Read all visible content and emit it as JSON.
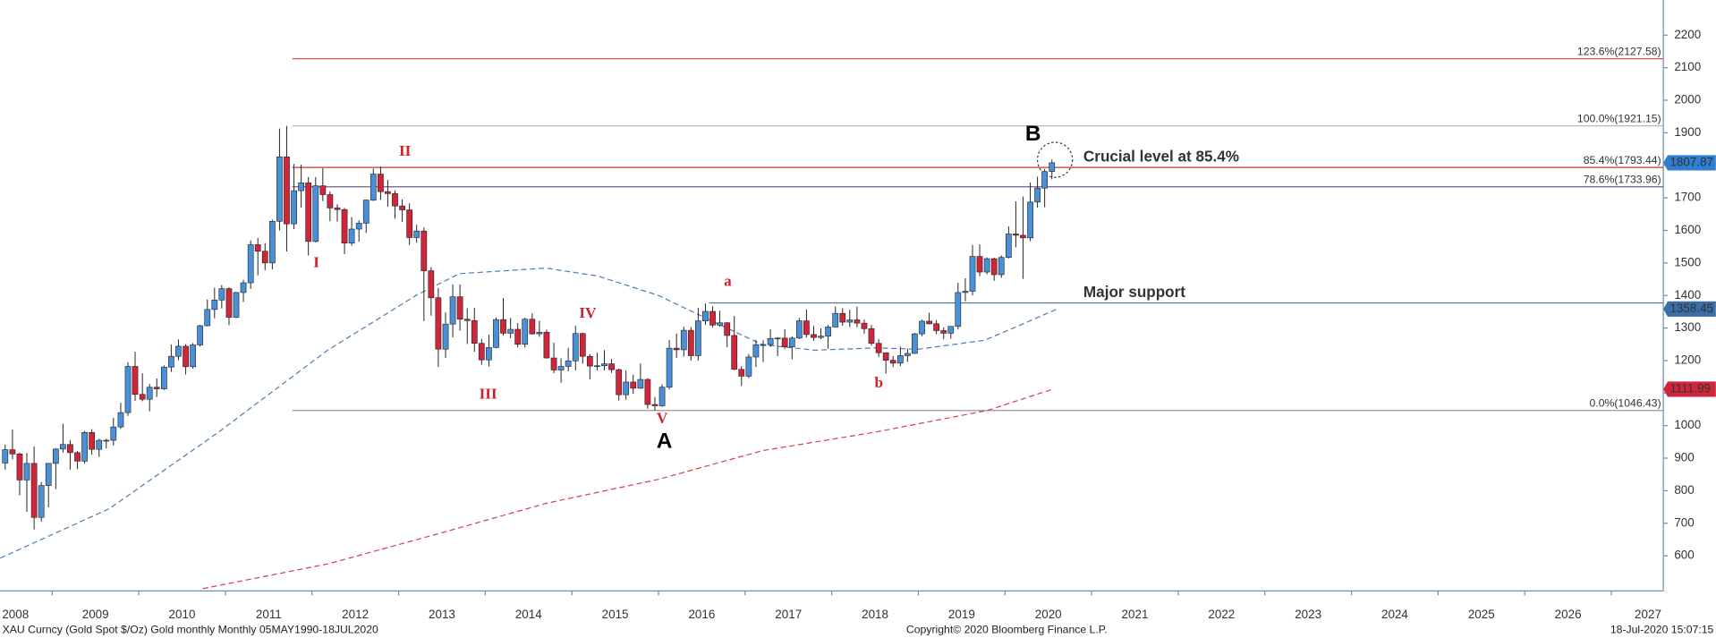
{
  "chart_data": {
    "type": "candlestick",
    "xlim": [
      2008.4,
      2027.6
    ],
    "xticks": [
      2008,
      2009,
      2010,
      2011,
      2012,
      2013,
      2014,
      2015,
      2016,
      2017,
      2018,
      2019,
      2020,
      2021,
      2022,
      2023,
      2024,
      2025,
      2026,
      2027
    ],
    "ylim": [
      492,
      2308
    ],
    "yticks": [
      600,
      700,
      800,
      900,
      1000,
      1100,
      1200,
      1300,
      1400,
      1500,
      1600,
      1700,
      1800,
      1900,
      2000,
      2100,
      2200
    ],
    "up_color": "#4a90d9",
    "down_color": "#d0253a",
    "x": [
      2008.458,
      2008.542,
      2008.625,
      2008.708,
      2008.792,
      2008.875,
      2008.958,
      2009.042,
      2009.125,
      2009.208,
      2009.292,
      2009.375,
      2009.458,
      2009.542,
      2009.625,
      2009.708,
      2009.792,
      2009.875,
      2009.958,
      2010.042,
      2010.125,
      2010.208,
      2010.292,
      2010.375,
      2010.458,
      2010.542,
      2010.625,
      2010.708,
      2010.792,
      2010.875,
      2010.958,
      2011.042,
      2011.125,
      2011.208,
      2011.292,
      2011.375,
      2011.458,
      2011.542,
      2011.625,
      2011.708,
      2011.792,
      2011.875,
      2011.958,
      2012.042,
      2012.125,
      2012.208,
      2012.292,
      2012.375,
      2012.458,
      2012.542,
      2012.625,
      2012.708,
      2012.792,
      2012.875,
      2012.958,
      2013.042,
      2013.125,
      2013.208,
      2013.292,
      2013.375,
      2013.458,
      2013.542,
      2013.625,
      2013.708,
      2013.792,
      2013.875,
      2013.958,
      2014.042,
      2014.125,
      2014.208,
      2014.292,
      2014.375,
      2014.458,
      2014.542,
      2014.625,
      2014.708,
      2014.792,
      2014.875,
      2014.958,
      2015.042,
      2015.125,
      2015.208,
      2015.292,
      2015.375,
      2015.458,
      2015.542,
      2015.625,
      2015.708,
      2015.792,
      2015.875,
      2015.958,
      2016.042,
      2016.125,
      2016.208,
      2016.292,
      2016.375,
      2016.458,
      2016.542,
      2016.625,
      2016.708,
      2016.792,
      2016.875,
      2016.958,
      2017.042,
      2017.125,
      2017.208,
      2017.292,
      2017.375,
      2017.458,
      2017.542,
      2017.625,
      2017.708,
      2017.792,
      2017.875,
      2017.958,
      2018.042,
      2018.125,
      2018.208,
      2018.292,
      2018.375,
      2018.458,
      2018.542,
      2018.625,
      2018.708,
      2018.792,
      2018.875,
      2018.958,
      2019.042,
      2019.125,
      2019.208,
      2019.292,
      2019.375,
      2019.458,
      2019.542,
      2019.625,
      2019.708,
      2019.792,
      2019.875,
      2019.958,
      2020.042,
      2020.125,
      2020.208,
      2020.292,
      2020.375,
      2020.458,
      2020.542
    ],
    "ohlc": [
      [
        885,
        942,
        865,
        926
      ],
      [
        926,
        988,
        897,
        913
      ],
      [
        913,
        917,
        786,
        833
      ],
      [
        833,
        916,
        735,
        884
      ],
      [
        884,
        936,
        681,
        718
      ],
      [
        718,
        827,
        705,
        816
      ],
      [
        816,
        884,
        749,
        884
      ],
      [
        884,
        931,
        805,
        928
      ],
      [
        928,
        1006,
        917,
        942
      ],
      [
        942,
        956,
        865,
        917
      ],
      [
        917,
        922,
        866,
        891
      ],
      [
        891,
        984,
        883,
        979
      ],
      [
        979,
        989,
        911,
        927
      ],
      [
        927,
        960,
        904,
        955
      ],
      [
        955,
        960,
        930,
        955
      ],
      [
        955,
        1024,
        939,
        996
      ],
      [
        996,
        1070,
        990,
        1040
      ],
      [
        1040,
        1195,
        1030,
        1182
      ],
      [
        1182,
        1227,
        1076,
        1096
      ],
      [
        1096,
        1161,
        1075,
        1081
      ],
      [
        1081,
        1128,
        1044,
        1118
      ],
      [
        1118,
        1145,
        1088,
        1113
      ],
      [
        1113,
        1185,
        1110,
        1180
      ],
      [
        1180,
        1249,
        1165,
        1213
      ],
      [
        1213,
        1265,
        1201,
        1244
      ],
      [
        1244,
        1250,
        1157,
        1181
      ],
      [
        1181,
        1254,
        1175,
        1248
      ],
      [
        1248,
        1310,
        1243,
        1307
      ],
      [
        1307,
        1388,
        1305,
        1357
      ],
      [
        1357,
        1424,
        1330,
        1386
      ],
      [
        1386,
        1432,
        1360,
        1421
      ],
      [
        1421,
        1425,
        1309,
        1333
      ],
      [
        1333,
        1411,
        1330,
        1409
      ],
      [
        1409,
        1448,
        1380,
        1439
      ],
      [
        1439,
        1569,
        1420,
        1556
      ],
      [
        1556,
        1577,
        1462,
        1536
      ],
      [
        1536,
        1561,
        1478,
        1500
      ],
      [
        1500,
        1633,
        1480,
        1628
      ],
      [
        1628,
        1913,
        1600,
        1826
      ],
      [
        1826,
        1921,
        1535,
        1620
      ],
      [
        1620,
        1804,
        1604,
        1722
      ],
      [
        1722,
        1802,
        1670,
        1746
      ],
      [
        1746,
        1764,
        1523,
        1566
      ],
      [
        1566,
        1764,
        1563,
        1737
      ],
      [
        1737,
        1791,
        1690,
        1710
      ],
      [
        1710,
        1720,
        1628,
        1669
      ],
      [
        1669,
        1680,
        1627,
        1664
      ],
      [
        1664,
        1669,
        1527,
        1561
      ],
      [
        1561,
        1641,
        1553,
        1604
      ],
      [
        1604,
        1631,
        1565,
        1622
      ],
      [
        1622,
        1695,
        1592,
        1693
      ],
      [
        1693,
        1790,
        1690,
        1773
      ],
      [
        1773,
        1796,
        1694,
        1719
      ],
      [
        1719,
        1755,
        1673,
        1713
      ],
      [
        1713,
        1723,
        1636,
        1675
      ],
      [
        1675,
        1695,
        1626,
        1663
      ],
      [
        1663,
        1683,
        1555,
        1578
      ],
      [
        1578,
        1617,
        1562,
        1598
      ],
      [
        1598,
        1609,
        1321,
        1476
      ],
      [
        1476,
        1487,
        1338,
        1393
      ],
      [
        1393,
        1423,
        1180,
        1235
      ],
      [
        1235,
        1348,
        1208,
        1312
      ],
      [
        1312,
        1434,
        1271,
        1396
      ],
      [
        1396,
        1434,
        1292,
        1327
      ],
      [
        1327,
        1361,
        1251,
        1323
      ],
      [
        1323,
        1362,
        1227,
        1253
      ],
      [
        1253,
        1267,
        1187,
        1202
      ],
      [
        1202,
        1280,
        1182,
        1240
      ],
      [
        1240,
        1332,
        1238,
        1326
      ],
      [
        1326,
        1392,
        1277,
        1284
      ],
      [
        1284,
        1331,
        1268,
        1296
      ],
      [
        1296,
        1315,
        1240,
        1250
      ],
      [
        1250,
        1332,
        1240,
        1327
      ],
      [
        1327,
        1345,
        1280,
        1282
      ],
      [
        1282,
        1322,
        1273,
        1287
      ],
      [
        1287,
        1295,
        1206,
        1208
      ],
      [
        1208,
        1255,
        1161,
        1171
      ],
      [
        1171,
        1207,
        1132,
        1182
      ],
      [
        1182,
        1239,
        1167,
        1199
      ],
      [
        1199,
        1307,
        1170,
        1283
      ],
      [
        1283,
        1286,
        1190,
        1213
      ],
      [
        1213,
        1220,
        1142,
        1183
      ],
      [
        1183,
        1224,
        1170,
        1184
      ],
      [
        1184,
        1232,
        1170,
        1190
      ],
      [
        1190,
        1205,
        1162,
        1172
      ],
      [
        1172,
        1175,
        1077,
        1095
      ],
      [
        1095,
        1170,
        1080,
        1134
      ],
      [
        1134,
        1157,
        1098,
        1115
      ],
      [
        1115,
        1191,
        1113,
        1142
      ],
      [
        1142,
        1146,
        1052,
        1065
      ],
      [
        1065,
        1088,
        1046,
        1061
      ],
      [
        1061,
        1127,
        1058,
        1118
      ],
      [
        1118,
        1263,
        1111,
        1238
      ],
      [
        1238,
        1283,
        1208,
        1233
      ],
      [
        1233,
        1304,
        1212,
        1293
      ],
      [
        1293,
        1303,
        1200,
        1215
      ],
      [
        1215,
        1362,
        1200,
        1322
      ],
      [
        1322,
        1375,
        1310,
        1351
      ],
      [
        1351,
        1367,
        1302,
        1309
      ],
      [
        1309,
        1353,
        1304,
        1316
      ],
      [
        1316,
        1318,
        1241,
        1277
      ],
      [
        1277,
        1337,
        1171,
        1173
      ],
      [
        1173,
        1183,
        1122,
        1152
      ],
      [
        1152,
        1220,
        1146,
        1211
      ],
      [
        1211,
        1264,
        1180,
        1249
      ],
      [
        1249,
        1262,
        1195,
        1249
      ],
      [
        1249,
        1296,
        1242,
        1268
      ],
      [
        1268,
        1272,
        1214,
        1269
      ],
      [
        1269,
        1296,
        1236,
        1242
      ],
      [
        1242,
        1274,
        1204,
        1269
      ],
      [
        1269,
        1331,
        1266,
        1322
      ],
      [
        1322,
        1357,
        1271,
        1280
      ],
      [
        1280,
        1306,
        1261,
        1271
      ],
      [
        1271,
        1299,
        1266,
        1275
      ],
      [
        1275,
        1309,
        1236,
        1303
      ],
      [
        1303,
        1366,
        1302,
        1345
      ],
      [
        1345,
        1361,
        1307,
        1318
      ],
      [
        1318,
        1356,
        1303,
        1325
      ],
      [
        1325,
        1366,
        1302,
        1315
      ],
      [
        1315,
        1326,
        1282,
        1298
      ],
      [
        1298,
        1309,
        1246,
        1253
      ],
      [
        1253,
        1266,
        1211,
        1224
      ],
      [
        1224,
        1225,
        1160,
        1201
      ],
      [
        1201,
        1214,
        1180,
        1192
      ],
      [
        1192,
        1243,
        1183,
        1215
      ],
      [
        1215,
        1237,
        1196,
        1222
      ],
      [
        1222,
        1285,
        1221,
        1282
      ],
      [
        1282,
        1326,
        1275,
        1321
      ],
      [
        1321,
        1347,
        1311,
        1313
      ],
      [
        1313,
        1324,
        1281,
        1292
      ],
      [
        1292,
        1302,
        1266,
        1284
      ],
      [
        1284,
        1306,
        1267,
        1305
      ],
      [
        1305,
        1439,
        1296,
        1409
      ],
      [
        1409,
        1453,
        1382,
        1413
      ],
      [
        1413,
        1555,
        1400,
        1520
      ],
      [
        1520,
        1557,
        1459,
        1472
      ],
      [
        1472,
        1517,
        1465,
        1513
      ],
      [
        1513,
        1516,
        1445,
        1464
      ],
      [
        1464,
        1523,
        1454,
        1517
      ],
      [
        1517,
        1612,
        1514,
        1589
      ],
      [
        1589,
        1689,
        1548,
        1585
      ],
      [
        1585,
        1704,
        1451,
        1577
      ],
      [
        1577,
        1747,
        1567,
        1687
      ],
      [
        1687,
        1765,
        1670,
        1730
      ],
      [
        1730,
        1789,
        1671,
        1781
      ],
      [
        1781,
        1818,
        1757,
        1807.87
      ]
    ],
    "moving_averages": [
      {
        "color": "#4f7fb0",
        "x": [
          2008.4,
          2009.66,
          2010.92,
          2012.18,
          2013.2,
          2013.7,
          2014.7,
          2015.3,
          2016.0,
          2016.66,
          2017.2,
          2017.8,
          2018.5,
          2019.0,
          2019.76,
          2020.1,
          2020.6
        ],
        "values": [
          593,
          745,
          980,
          1232,
          1400,
          1467,
          1484,
          1460,
          1400,
          1316,
          1249,
          1232,
          1239,
          1235,
          1262,
          1300,
          1358
        ]
      },
      {
        "color": "#d9404a",
        "x": [
          2010.74,
          2012.2,
          2013.5,
          2014.7,
          2016.0,
          2017.2,
          2018.5,
          2019.8,
          2020.55
        ],
        "values": [
          499,
          576,
          671,
          761,
          835,
          923,
          980,
          1047,
          1112
        ]
      }
    ],
    "levels": [
      {
        "label": "123.6%(2127.58)",
        "value": 2127.58,
        "color": "#d9534f"
      },
      {
        "label": "100.0%(1921.15)",
        "value": 1921.15,
        "color": "#b0b0b0"
      },
      {
        "label": "85.4%(1793.44)",
        "value": 1793.44,
        "color": "#c0392b"
      },
      {
        "label": "78.6%(1733.96)",
        "value": 1733.96,
        "color": "#7a5c8a"
      },
      {
        "label": "0.0%(1046.43)",
        "value": 1046.43,
        "color": "#999999"
      }
    ],
    "support": {
      "label": "Major support",
      "value": 1377,
      "color": "#4a6f95"
    },
    "price_tags": [
      {
        "value": 1807.87,
        "color": "#2f7fd0"
      },
      {
        "value": 1358.45,
        "color": "#3a6ea5"
      },
      {
        "value": 1111.99,
        "color": "#d0253a"
      }
    ],
    "annotations": [
      "I",
      "II",
      "III",
      "IV",
      "V",
      "A",
      "B",
      "a",
      "b",
      "Crucial level at 85.4%"
    ],
    "footer": {
      "left": "XAU Curncy (Gold Spot   $/Oz) Gold monthly  Monthly 05MAY1990-18JUL2020",
      "center": "Copyright© 2020 Bloomberg Finance L.P.",
      "right": "18-Jul-2020 15:07:15"
    }
  }
}
